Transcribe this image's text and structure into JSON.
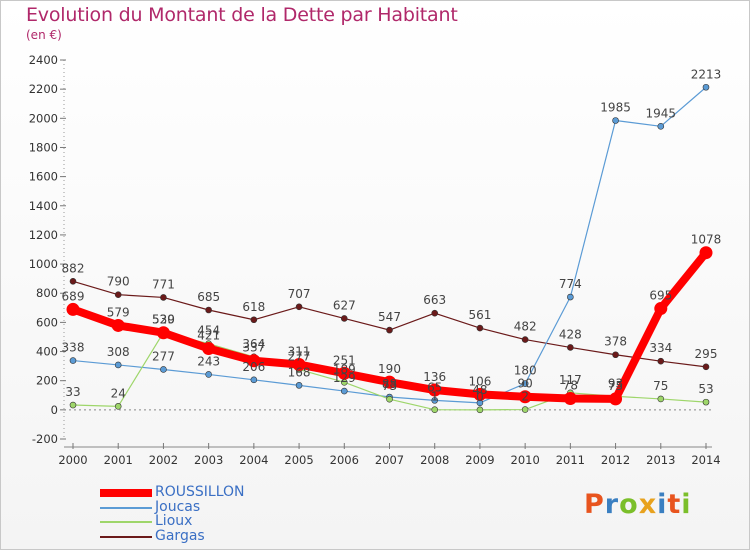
{
  "title": "Evolution du Montant de la Dette par Habitant",
  "unit": "(en €)",
  "logo": {
    "text": "Proxiti",
    "colors": [
      "#e8541e",
      "#3a7fc1",
      "#7bbf2a",
      "#e8a21e",
      "#3a7fc1",
      "#e8541e",
      "#7bbf2a"
    ]
  },
  "chart_data": {
    "type": "line",
    "x": [
      "2000",
      "2001",
      "2002",
      "2003",
      "2004",
      "2005",
      "2006",
      "2007",
      "2008",
      "2009",
      "2010",
      "2011",
      "2012",
      "2013",
      "2014"
    ],
    "ylim": [
      -200,
      2400
    ],
    "yticks": [
      -200,
      0,
      200,
      400,
      600,
      800,
      1000,
      1200,
      1400,
      1600,
      1800,
      2000,
      2200,
      2400
    ],
    "ytick_labels": [
      "-200",
      "0",
      "200",
      "400",
      "600",
      "800",
      "1000",
      "1200",
      "1400",
      "1600",
      "1800",
      "2000",
      "2200",
      "2400"
    ],
    "legend_position": "bottom-left",
    "series": [
      {
        "name": "Gargas",
        "color": "#6b1a1a",
        "values": [
          882,
          790,
          771,
          685,
          618,
          707,
          627,
          547,
          663,
          561,
          482,
          428,
          378,
          334,
          295
        ],
        "labels": [
          "882",
          "790",
          "771",
          "685",
          "618",
          "707",
          "627",
          "547",
          "663",
          "561",
          "482",
          "428",
          "378",
          "334",
          "295"
        ]
      },
      {
        "name": "Joucas",
        "color": "#5b9bd5",
        "values": [
          338,
          308,
          277,
          243,
          206,
          168,
          129,
          88,
          65,
          48,
          180,
          774,
          1985,
          1945,
          2213
        ],
        "labels": [
          "338",
          "308",
          "277",
          "243",
          "206",
          "168",
          "129",
          "88",
          "65",
          "48",
          "180",
          "774",
          "1985",
          "1945",
          "2213"
        ]
      },
      {
        "name": "Lioux",
        "color": "#9ed66a",
        "values": [
          33,
          24,
          530,
          454,
          364,
          277,
          189,
          73,
          1,
          0,
          2,
          117,
          93,
          75,
          53
        ],
        "labels": [
          "33",
          "24",
          "530",
          "454",
          "364",
          "277",
          "189",
          "73",
          "1",
          "0",
          "2",
          "117",
          "93",
          "75",
          "53"
        ]
      },
      {
        "name": "ROUSSILLON",
        "color": "#ff0000",
        "values": [
          689,
          579,
          529,
          421,
          337,
          311,
          251,
          190,
          136,
          106,
          90,
          78,
          75,
          695,
          1078
        ],
        "labels": [
          "689",
          "579",
          "529",
          "421",
          "337",
          "311",
          "251",
          "190",
          "136",
          "106",
          "90",
          "78",
          "75",
          "695",
          "1078"
        ]
      }
    ]
  },
  "legend": [
    {
      "name": "ROUSSILLON",
      "color": "#ff0000",
      "text_color": "#3a6fc4"
    },
    {
      "name": "Joucas",
      "color": "#5b9bd5",
      "text_color": "#3a6fc4"
    },
    {
      "name": "Lioux",
      "color": "#9ed66a",
      "text_color": "#3a6fc4"
    },
    {
      "name": "Gargas",
      "color": "#6b1a1a",
      "text_color": "#3a6fc4"
    }
  ]
}
